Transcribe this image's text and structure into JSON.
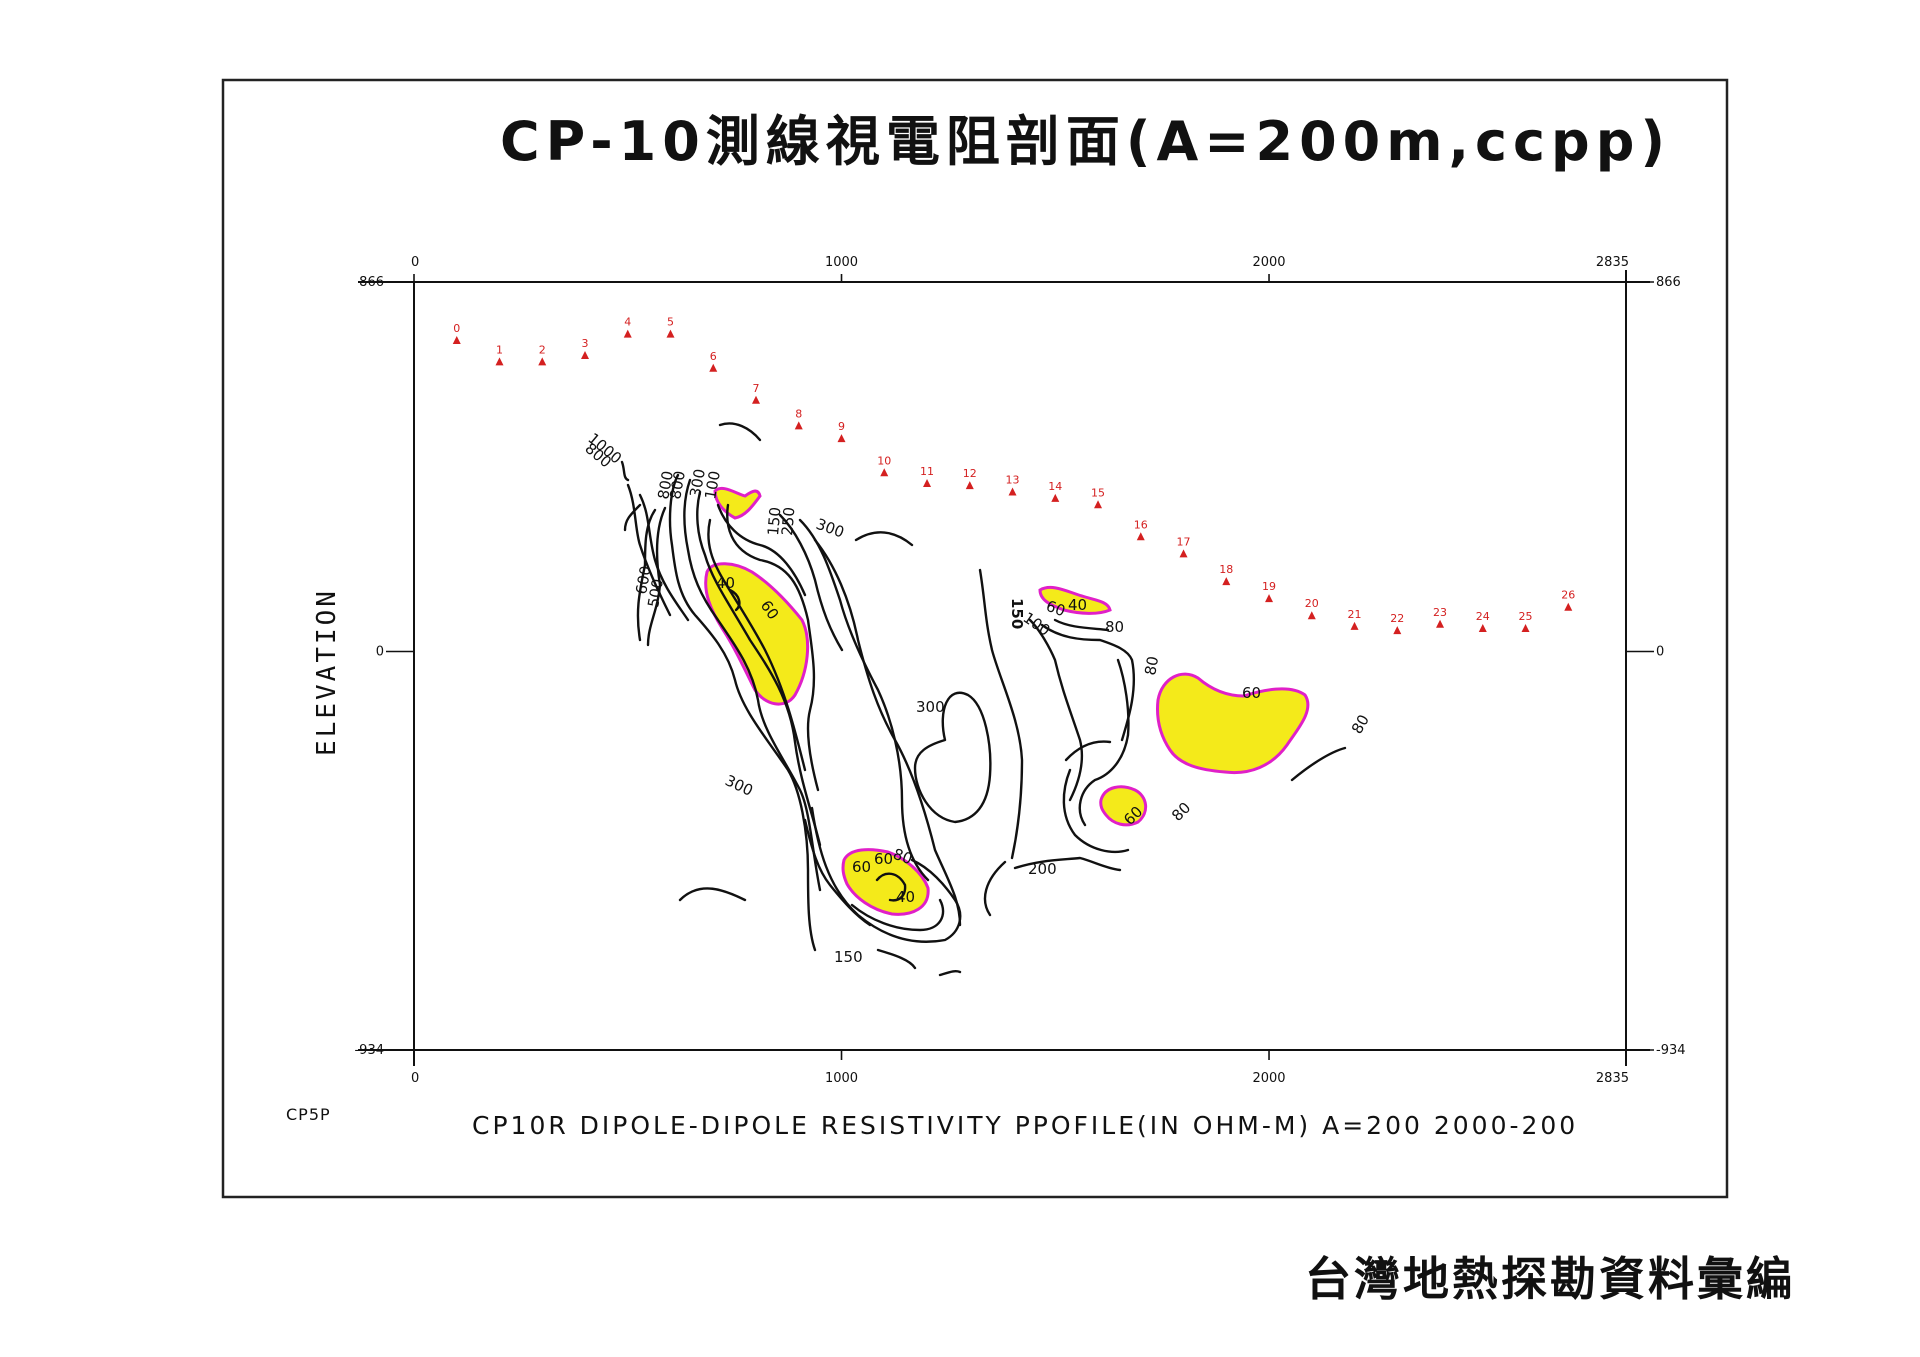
{
  "title": "CP-10測線視電阻剖面(A=200m,ccpp)",
  "footer": "台灣地熱探勘資料彙編",
  "code_label": "CP5P",
  "profile_caption": "CP10R  DIPOLE-DIPOLE  RESISTIVITY   PPOFILE(IN  OHM-M)  A=200  2000-200",
  "y_axis_label": "ELEVATION",
  "x_axis": {
    "min": 0,
    "max": 2835,
    "ticks": [
      "0",
      "1000",
      "2000",
      "2835"
    ]
  },
  "y_axis": {
    "min": -934,
    "max": 866,
    "ticks": [
      "866",
      "0",
      "-934"
    ]
  },
  "electrodes": [
    {
      "label": "0",
      "x": 100,
      "z": 730
    },
    {
      "label": "1",
      "x": 200,
      "z": 680
    },
    {
      "label": "2",
      "x": 300,
      "z": 680
    },
    {
      "label": "3",
      "x": 400,
      "z": 695
    },
    {
      "label": "4",
      "x": 500,
      "z": 745
    },
    {
      "label": "5",
      "x": 600,
      "z": 745
    },
    {
      "label": "6",
      "x": 700,
      "z": 665
    },
    {
      "label": "7",
      "x": 800,
      "z": 590
    },
    {
      "label": "8",
      "x": 900,
      "z": 530
    },
    {
      "label": "9",
      "x": 1000,
      "z": 500
    },
    {
      "label": "10",
      "x": 1100,
      "z": 420
    },
    {
      "label": "11",
      "x": 1200,
      "z": 395
    },
    {
      "label": "12",
      "x": 1300,
      "z": 390
    },
    {
      "label": "13",
      "x": 1400,
      "z": 375
    },
    {
      "label": "14",
      "x": 1500,
      "z": 360
    },
    {
      "label": "15",
      "x": 1600,
      "z": 345
    },
    {
      "label": "16",
      "x": 1700,
      "z": 270
    },
    {
      "label": "17",
      "x": 1800,
      "z": 230
    },
    {
      "label": "18",
      "x": 1900,
      "z": 165
    },
    {
      "label": "19",
      "x": 2000,
      "z": 125
    },
    {
      "label": "20",
      "x": 2100,
      "z": 85
    },
    {
      "label": "21",
      "x": 2200,
      "z": 60
    },
    {
      "label": "22",
      "x": 2300,
      "z": 50
    },
    {
      "label": "23",
      "x": 2400,
      "z": 65
    },
    {
      "label": "24",
      "x": 2500,
      "z": 55
    },
    {
      "label": "25",
      "x": 2600,
      "z": 55
    },
    {
      "label": "26",
      "x": 2700,
      "z": 105
    }
  ],
  "contour_labels": [
    "1000",
    "800",
    "800",
    "800",
    "300",
    "100",
    "150",
    "250",
    "300",
    "600",
    "500",
    "40",
    "60",
    "300",
    "300",
    "150",
    "100",
    "60",
    "40",
    "80",
    "80",
    "60",
    "80",
    "60",
    "80",
    "200",
    "60",
    "60",
    "80",
    "40",
    "150"
  ],
  "colors": {
    "low_fill": "#f4ea1a",
    "low_outline": "#e020c8",
    "electrode": "#d42020"
  }
}
